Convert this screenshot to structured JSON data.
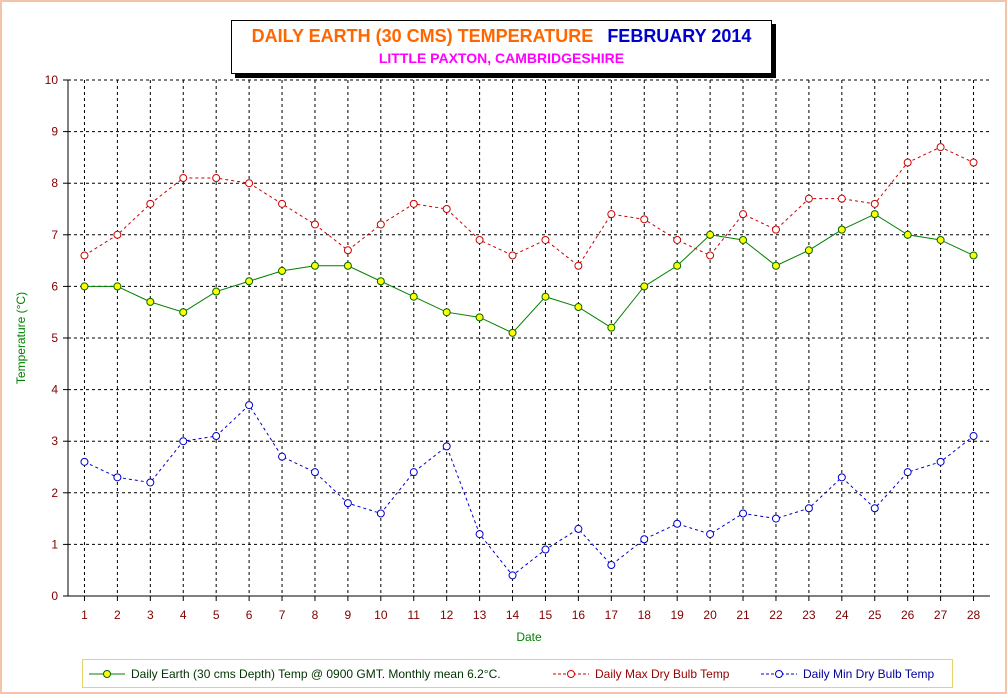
{
  "title": {
    "main": "DAILY EARTH (30 CMS) TEMPERATURE",
    "month": "FEBRUARY 2014",
    "subtitle": "LITTLE PAXTON, CAMBRIDGESHIRE"
  },
  "colors": {
    "earth_line": "#008000",
    "earth_marker": "#ffff00",
    "max_line": "#cc0000",
    "min_line": "#0000cc",
    "tick_labels": "#800000",
    "axis_title": "#008000",
    "title_main": "#ff6600",
    "title_month": "#0000cc",
    "subtitle": "#ff00ff"
  },
  "chart_data": {
    "type": "line",
    "xlabel": "Date",
    "ylabel": "Temperature (°C)",
    "ylim": [
      0,
      10
    ],
    "yticks": [
      0,
      1,
      2,
      3,
      4,
      5,
      6,
      7,
      8,
      9,
      10
    ],
    "grid": true,
    "legend": "bottom",
    "x": [
      1,
      2,
      3,
      4,
      5,
      6,
      7,
      8,
      9,
      10,
      11,
      12,
      13,
      14,
      15,
      16,
      17,
      18,
      19,
      20,
      21,
      22,
      23,
      24,
      25,
      26,
      27,
      28
    ],
    "series": [
      {
        "name": "Daily Earth (30 cms Depth) Temp @ 0900 GMT. Monthly mean 6.2°C.",
        "style": "solid",
        "values": [
          6.0,
          6.0,
          5.7,
          5.5,
          5.9,
          6.1,
          6.3,
          6.4,
          6.4,
          6.1,
          5.8,
          5.5,
          5.4,
          5.1,
          5.8,
          5.6,
          5.2,
          6.0,
          6.4,
          7.0,
          6.9,
          6.4,
          6.7,
          7.1,
          7.4,
          7.0,
          6.9,
          6.6
        ]
      },
      {
        "name": "Daily Max Dry Bulb Temp",
        "style": "dashed",
        "values": [
          6.6,
          7.0,
          7.6,
          8.1,
          8.1,
          8.0,
          7.6,
          7.2,
          6.7,
          7.2,
          7.6,
          7.5,
          6.9,
          6.6,
          6.9,
          6.4,
          7.4,
          7.3,
          6.9,
          6.6,
          7.4,
          7.1,
          7.7,
          7.7,
          7.6,
          8.4,
          8.7,
          8.4
        ]
      },
      {
        "name": "Daily Min Dry Bulb Temp",
        "style": "dashed",
        "values": [
          2.6,
          2.3,
          2.2,
          3.0,
          3.1,
          3.7,
          2.7,
          2.4,
          1.8,
          1.6,
          2.4,
          2.9,
          1.2,
          0.4,
          0.9,
          1.3,
          0.6,
          1.1,
          1.4,
          1.2,
          1.6,
          1.5,
          1.7,
          2.3,
          1.7,
          2.4,
          2.6,
          3.1
        ]
      }
    ]
  }
}
